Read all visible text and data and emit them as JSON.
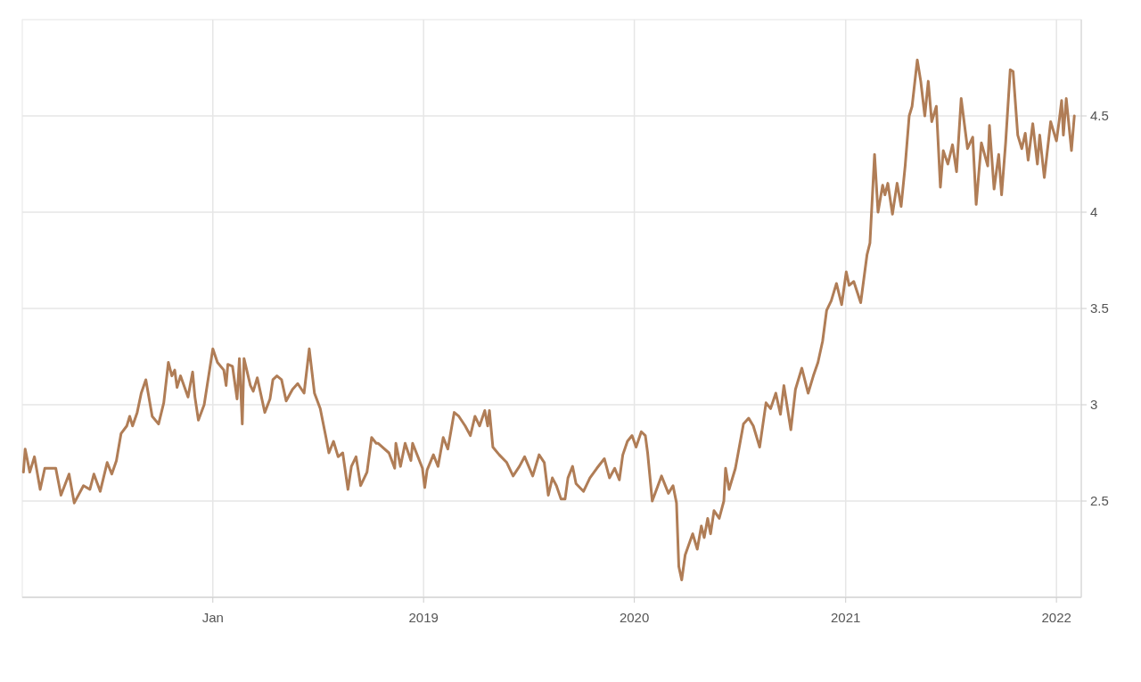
{
  "chart_data": {
    "type": "line",
    "xlim": [
      "2017-02-05",
      "2022-02-13"
    ],
    "ylim": [
      2,
      5
    ],
    "xticks": [
      {
        "value": "2018-01-01",
        "label": "Jan"
      },
      {
        "value": "2019-01-01",
        "label": "2019"
      },
      {
        "value": "2020-01-01",
        "label": "2020"
      },
      {
        "value": "2021-01-01",
        "label": "2021"
      },
      {
        "value": "2022-01-01",
        "label": "2022"
      }
    ],
    "yticks": [
      2.5,
      3,
      3.5,
      4,
      4.5
    ],
    "grid": true,
    "marker": "none",
    "line_style": "solid",
    "series": [
      {
        "color": "#b07d56",
        "x": [
          "2017-02-07",
          "2017-02-10",
          "2017-02-18",
          "2017-02-26",
          "2017-03-08",
          "2017-03-16",
          "2017-03-27",
          "2017-04-04",
          "2017-04-13",
          "2017-04-27",
          "2017-05-06",
          "2017-05-22",
          "2017-06-02",
          "2017-06-09",
          "2017-06-20",
          "2017-07-02",
          "2017-07-10",
          "2017-07-18",
          "2017-07-26",
          "2017-08-05",
          "2017-08-10",
          "2017-08-15",
          "2017-08-23",
          "2017-08-30",
          "2017-09-07",
          "2017-09-18",
          "2017-09-29",
          "2017-10-08",
          "2017-10-16",
          "2017-10-22",
          "2017-10-27",
          "2017-10-31",
          "2017-11-06",
          "2017-11-19",
          "2017-11-27",
          "2017-12-01",
          "2017-12-07",
          "2017-12-17",
          "2018-01-01",
          "2018-01-09",
          "2018-01-20",
          "2018-01-24",
          "2018-01-27",
          "2018-02-04",
          "2018-02-12",
          "2018-02-16",
          "2018-02-21",
          "2018-02-24",
          "2018-03-07",
          "2018-03-12",
          "2018-03-19",
          "2018-04-01",
          "2018-04-10",
          "2018-04-15",
          "2018-04-22",
          "2018-04-30",
          "2018-05-08",
          "2018-05-19",
          "2018-05-28",
          "2018-06-08",
          "2018-06-17",
          "2018-06-26",
          "2018-07-06",
          "2018-07-16",
          "2018-07-21",
          "2018-07-29",
          "2018-08-06",
          "2018-08-14",
          "2018-08-23",
          "2018-08-29",
          "2018-09-06",
          "2018-09-14",
          "2018-09-25",
          "2018-10-03",
          "2018-10-11",
          "2018-10-14",
          "2018-11-02",
          "2018-11-12",
          "2018-11-14",
          "2018-11-22",
          "2018-11-30",
          "2018-12-10",
          "2018-12-13",
          "2018-12-30",
          "2019-01-03",
          "2019-01-07",
          "2019-01-18",
          "2019-01-26",
          "2019-02-04",
          "2019-02-12",
          "2019-02-23",
          "2019-03-03",
          "2019-03-14",
          "2019-03-23",
          "2019-03-31",
          "2019-04-08",
          "2019-04-17",
          "2019-04-22",
          "2019-04-25",
          "2019-05-01",
          "2019-05-12",
          "2019-05-25",
          "2019-06-05",
          "2019-06-16",
          "2019-06-25",
          "2019-07-09",
          "2019-07-20",
          "2019-07-29",
          "2019-08-05",
          "2019-08-12",
          "2019-08-19",
          "2019-08-27",
          "2019-09-03",
          "2019-09-08",
          "2019-09-16",
          "2019-09-22",
          "2019-10-05",
          "2019-10-16",
          "2019-10-28",
          "2019-11-10",
          "2019-11-19",
          "2019-11-28",
          "2019-12-06",
          "2019-12-12",
          "2019-12-20",
          "2019-12-28",
          "2020-01-04",
          "2020-01-13",
          "2020-01-20",
          "2020-01-24",
          "2020-02-01",
          "2020-02-17",
          "2020-02-29",
          "2020-03-08",
          "2020-03-14",
          "2020-03-18",
          "2020-03-23",
          "2020-03-29",
          "2020-04-11",
          "2020-04-19",
          "2020-04-26",
          "2020-05-01",
          "2020-05-07",
          "2020-05-12",
          "2020-05-18",
          "2020-05-27",
          "2020-06-04",
          "2020-06-07",
          "2020-06-13",
          "2020-06-24",
          "2020-07-08",
          "2020-07-17",
          "2020-07-25",
          "2020-08-05",
          "2020-08-16",
          "2020-08-24",
          "2020-09-02",
          "2020-09-10",
          "2020-09-16",
          "2020-09-28",
          "2020-10-06",
          "2020-10-17",
          "2020-10-28",
          "2020-11-06",
          "2020-11-14",
          "2020-11-22",
          "2020-11-29",
          "2020-12-07",
          "2020-12-16",
          "2020-12-25",
          "2021-01-02",
          "2021-01-07",
          "2021-01-15",
          "2021-01-27",
          "2021-02-07",
          "2021-02-12",
          "2021-02-20",
          "2021-02-26",
          "2021-03-06",
          "2021-03-10",
          "2021-03-15",
          "2021-03-23",
          "2021-03-31",
          "2021-04-07",
          "2021-04-14",
          "2021-04-21",
          "2021-04-26",
          "2021-05-05",
          "2021-05-11",
          "2021-05-18",
          "2021-05-24",
          "2021-05-30",
          "2021-06-07",
          "2021-06-14",
          "2021-06-19",
          "2021-06-27",
          "2021-07-05",
          "2021-07-12",
          "2021-07-20",
          "2021-07-31",
          "2021-08-09",
          "2021-08-15",
          "2021-08-24",
          "2021-09-04",
          "2021-09-07",
          "2021-09-15",
          "2021-09-23",
          "2021-09-28",
          "2021-10-05",
          "2021-10-13",
          "2021-10-18",
          "2021-10-26",
          "2021-11-02",
          "2021-11-08",
          "2021-11-13",
          "2021-11-21",
          "2021-11-29",
          "2021-12-03",
          "2021-12-11",
          "2021-12-22",
          "2022-01-01",
          "2022-01-06",
          "2022-01-10",
          "2022-01-13",
          "2022-01-18",
          "2022-01-27",
          "2022-02-01"
        ],
        "values": [
          2.65,
          2.77,
          2.65,
          2.73,
          2.56,
          2.67,
          2.67,
          2.67,
          2.53,
          2.64,
          2.49,
          2.58,
          2.56,
          2.64,
          2.55,
          2.7,
          2.64,
          2.71,
          2.85,
          2.89,
          2.94,
          2.89,
          2.96,
          3.06,
          3.13,
          2.94,
          2.9,
          3.01,
          3.22,
          3.15,
          3.18,
          3.09,
          3.15,
          3.04,
          3.17,
          3.04,
          2.92,
          3.0,
          3.29,
          3.22,
          3.18,
          3.1,
          3.21,
          3.2,
          3.03,
          3.24,
          2.9,
          3.24,
          3.1,
          3.07,
          3.14,
          2.96,
          3.03,
          3.13,
          3.15,
          3.13,
          3.02,
          3.08,
          3.11,
          3.06,
          3.29,
          3.06,
          2.98,
          2.83,
          2.75,
          2.81,
          2.73,
          2.75,
          2.56,
          2.68,
          2.73,
          2.58,
          2.65,
          2.83,
          2.8,
          2.8,
          2.75,
          2.67,
          2.8,
          2.68,
          2.8,
          2.71,
          2.8,
          2.67,
          2.57,
          2.66,
          2.74,
          2.68,
          2.83,
          2.77,
          2.96,
          2.94,
          2.89,
          2.84,
          2.94,
          2.89,
          2.97,
          2.89,
          2.97,
          2.78,
          2.74,
          2.7,
          2.63,
          2.68,
          2.73,
          2.63,
          2.74,
          2.7,
          2.53,
          2.62,
          2.58,
          2.51,
          2.51,
          2.62,
          2.68,
          2.59,
          2.55,
          2.62,
          2.67,
          2.72,
          2.62,
          2.67,
          2.61,
          2.74,
          2.81,
          2.84,
          2.78,
          2.86,
          2.84,
          2.75,
          2.5,
          2.63,
          2.54,
          2.58,
          2.49,
          2.16,
          2.09,
          2.22,
          2.33,
          2.25,
          2.37,
          2.31,
          2.41,
          2.33,
          2.45,
          2.41,
          2.5,
          2.67,
          2.56,
          2.67,
          2.9,
          2.93,
          2.89,
          2.78,
          3.01,
          2.98,
          3.06,
          2.95,
          3.1,
          2.87,
          3.08,
          3.19,
          3.06,
          3.15,
          3.22,
          3.33,
          3.49,
          3.54,
          3.63,
          3.52,
          3.69,
          3.62,
          3.64,
          3.53,
          3.78,
          3.84,
          4.3,
          4.0,
          4.14,
          4.09,
          4.15,
          3.99,
          4.15,
          4.03,
          4.24,
          4.5,
          4.55,
          4.79,
          4.68,
          4.5,
          4.68,
          4.47,
          4.55,
          4.13,
          4.32,
          4.25,
          4.35,
          4.21,
          4.59,
          4.33,
          4.39,
          4.04,
          4.36,
          4.24,
          4.45,
          4.12,
          4.3,
          4.09,
          4.36,
          4.74,
          4.73,
          4.4,
          4.33,
          4.41,
          4.27,
          4.46,
          4.25,
          4.4,
          4.18,
          4.47,
          4.37,
          4.48,
          4.58,
          4.4,
          4.59,
          4.32,
          4.5
        ]
      }
    ]
  }
}
